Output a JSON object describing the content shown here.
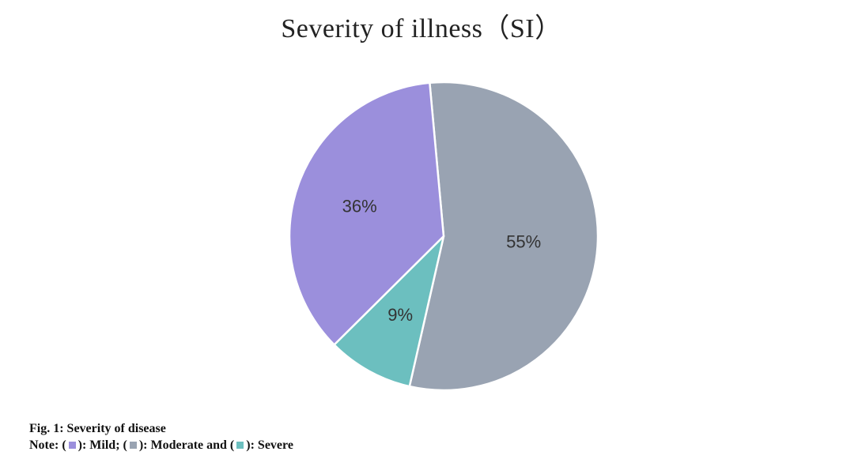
{
  "chart_data": {
    "type": "pie",
    "title": "Severity of illness（SI）",
    "slices": [
      {
        "name": "Moderate",
        "value": 55,
        "label": "55%",
        "color": "#99a3b2"
      },
      {
        "name": "Severe",
        "value": 9,
        "label": "9%",
        "color": "#6cbfbf"
      },
      {
        "name": "Mild",
        "value": 36,
        "label": "36%",
        "color": "#9b8fdc"
      }
    ],
    "legend": "caption-below"
  },
  "caption": {
    "title": "Fig. 1: Severity of disease",
    "note_prefix": "Note: (",
    "mild_text": "): Mild; (",
    "moderate_text": "): Moderate and (",
    "severe_text": "): Severe"
  }
}
